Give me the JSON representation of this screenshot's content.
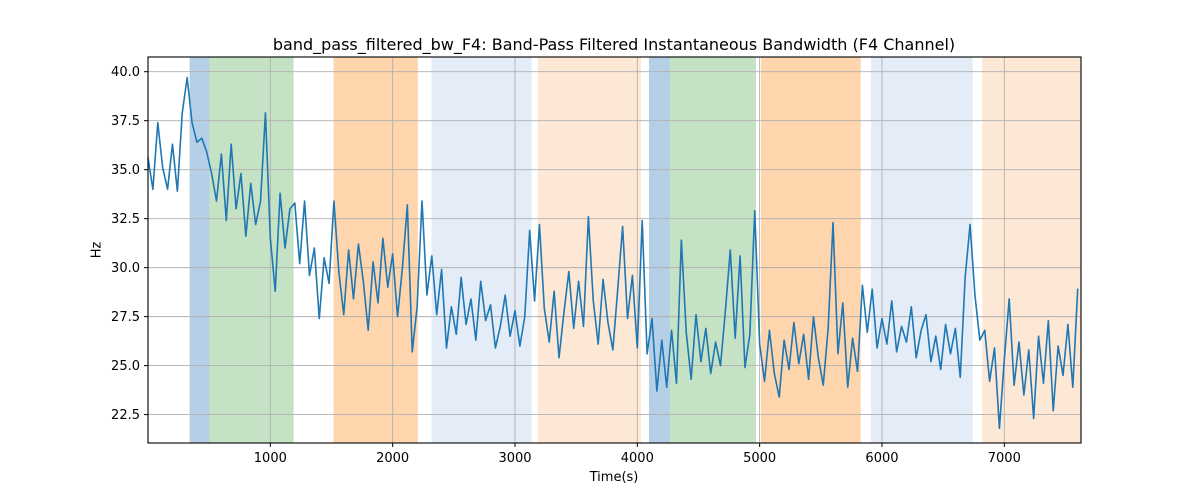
{
  "chart_data": {
    "type": "line",
    "title": "band_pass_filtered_bw_F4: Band-Pass Filtered Instantaneous Bandwidth (F4 Channel)",
    "xlabel": "Time(s)",
    "ylabel": "Hz",
    "xlim": [
      0,
      7627
    ],
    "ylim": [
      21.05,
      40.75
    ],
    "x_ticks": [
      1000,
      2000,
      3000,
      4000,
      5000,
      6000,
      7000
    ],
    "y_ticks": [
      22.5,
      25.0,
      27.5,
      30.0,
      32.5,
      35.0,
      37.5,
      40.0
    ],
    "grid": true,
    "legend_position": "none",
    "colors": {
      "line": "#1f77b4",
      "grid": "#b0b0b0",
      "axis": "#000000",
      "band_blue_strong": "#b5d0e6",
      "band_green": "#c6e2c5",
      "band_orange_strong": "#fed5ad",
      "band_blue_light": "#e4edf7",
      "band_orange_light": "#fde8d5"
    },
    "highlight_bands": [
      {
        "x_start": 340,
        "x_end": 503,
        "color": "band_blue_strong"
      },
      {
        "x_start": 503,
        "x_end": 1190,
        "color": "band_green"
      },
      {
        "x_start": 1517,
        "x_end": 2206,
        "color": "band_orange_strong"
      },
      {
        "x_start": 2318,
        "x_end": 3136,
        "color": "band_blue_light"
      },
      {
        "x_start": 3186,
        "x_end": 4030,
        "color": "band_orange_light"
      },
      {
        "x_start": 4095,
        "x_end": 4267,
        "color": "band_blue_strong"
      },
      {
        "x_start": 4267,
        "x_end": 4970,
        "color": "band_green"
      },
      {
        "x_start": 5011,
        "x_end": 5826,
        "color": "band_orange_strong"
      },
      {
        "x_start": 5910,
        "x_end": 6742,
        "color": "band_blue_light"
      },
      {
        "x_start": 6820,
        "x_end": 7627,
        "color": "band_orange_light"
      }
    ],
    "series": [
      {
        "name": "band_pass_filtered_bw_F4",
        "x": [
          0,
          40,
          80,
          120,
          160,
          200,
          240,
          280,
          320,
          360,
          400,
          440,
          480,
          520,
          560,
          600,
          640,
          680,
          720,
          760,
          800,
          840,
          880,
          920,
          960,
          1000,
          1040,
          1080,
          1120,
          1160,
          1200,
          1240,
          1280,
          1320,
          1360,
          1400,
          1440,
          1480,
          1520,
          1560,
          1600,
          1640,
          1680,
          1720,
          1760,
          1800,
          1840,
          1880,
          1920,
          1960,
          2000,
          2040,
          2080,
          2120,
          2160,
          2200,
          2240,
          2280,
          2320,
          2360,
          2400,
          2440,
          2480,
          2520,
          2560,
          2600,
          2640,
          2680,
          2720,
          2760,
          2800,
          2840,
          2880,
          2920,
          2960,
          3000,
          3040,
          3080,
          3120,
          3160,
          3200,
          3240,
          3280,
          3320,
          3360,
          3400,
          3440,
          3480,
          3520,
          3560,
          3600,
          3640,
          3680,
          3720,
          3760,
          3800,
          3840,
          3880,
          3920,
          3960,
          4000,
          4040,
          4080,
          4120,
          4160,
          4200,
          4240,
          4280,
          4320,
          4360,
          4400,
          4440,
          4480,
          4520,
          4560,
          4600,
          4640,
          4680,
          4720,
          4760,
          4800,
          4840,
          4880,
          4920,
          4960,
          5000,
          5040,
          5080,
          5120,
          5160,
          5200,
          5240,
          5280,
          5320,
          5360,
          5400,
          5440,
          5480,
          5520,
          5560,
          5600,
          5640,
          5680,
          5720,
          5760,
          5800,
          5840,
          5880,
          5920,
          5960,
          6000,
          6040,
          6080,
          6120,
          6160,
          6200,
          6240,
          6280,
          6320,
          6360,
          6400,
          6440,
          6480,
          6520,
          6560,
          6600,
          6640,
          6680,
          6720,
          6760,
          6800,
          6840,
          6880,
          6920,
          6960,
          7000,
          7040,
          7080,
          7120,
          7160,
          7200,
          7240,
          7280,
          7320,
          7360,
          7400,
          7440,
          7480,
          7520,
          7560,
          7600
        ],
        "y": [
          35.6,
          34.0,
          37.4,
          35.1,
          34.0,
          36.3,
          33.9,
          37.9,
          39.7,
          37.4,
          36.4,
          36.6,
          35.9,
          34.8,
          33.4,
          35.8,
          32.4,
          36.3,
          33.0,
          34.8,
          31.6,
          34.3,
          32.2,
          33.4,
          37.9,
          31.5,
          28.8,
          33.8,
          31.0,
          33.0,
          33.3,
          30.2,
          33.4,
          29.6,
          31.0,
          27.4,
          30.5,
          29.2,
          33.4,
          29.8,
          27.6,
          30.9,
          28.4,
          31.2,
          29.3,
          26.8,
          30.3,
          28.2,
          31.5,
          29.0,
          30.7,
          27.5,
          30.0,
          33.2,
          25.7,
          28.0,
          33.4,
          28.6,
          30.6,
          27.6,
          29.9,
          25.9,
          28.0,
          26.6,
          29.5,
          27.1,
          28.4,
          26.3,
          29.3,
          27.3,
          28.1,
          25.9,
          27.0,
          28.6,
          26.5,
          27.8,
          26.0,
          27.5,
          31.9,
          28.3,
          32.2,
          27.9,
          26.2,
          28.8,
          25.4,
          27.7,
          29.8,
          26.9,
          29.3,
          27.0,
          32.6,
          28.3,
          26.1,
          29.4,
          27.2,
          25.8,
          28.9,
          32.1,
          27.4,
          29.6,
          25.9,
          32.4,
          25.6,
          27.4,
          23.7,
          26.3,
          23.9,
          26.8,
          24.1,
          31.4,
          26.7,
          24.3,
          27.6,
          25.2,
          26.9,
          24.6,
          26.2,
          25.0,
          27.8,
          30.9,
          26.4,
          30.6,
          24.9,
          26.6,
          32.9,
          26.1,
          24.2,
          26.8,
          24.6,
          23.4,
          26.3,
          24.8,
          27.2,
          25.1,
          26.6,
          24.3,
          27.5,
          25.4,
          24.0,
          26.9,
          32.3,
          25.6,
          28.2,
          23.9,
          26.4,
          24.7,
          29.1,
          26.7,
          28.9,
          25.9,
          27.4,
          26.1,
          28.3,
          25.7,
          27.0,
          26.2,
          28.0,
          25.4,
          26.8,
          27.6,
          25.2,
          26.5,
          24.8,
          27.1,
          25.6,
          26.9,
          24.4,
          29.5,
          32.2,
          28.6,
          26.3,
          26.8,
          24.2,
          25.9,
          21.8,
          25.3,
          28.4,
          24.0,
          26.2,
          23.5,
          25.8,
          22.3,
          26.5,
          24.1,
          27.3,
          22.7,
          26.0,
          24.5,
          27.1,
          23.9,
          28.9
        ]
      }
    ]
  }
}
